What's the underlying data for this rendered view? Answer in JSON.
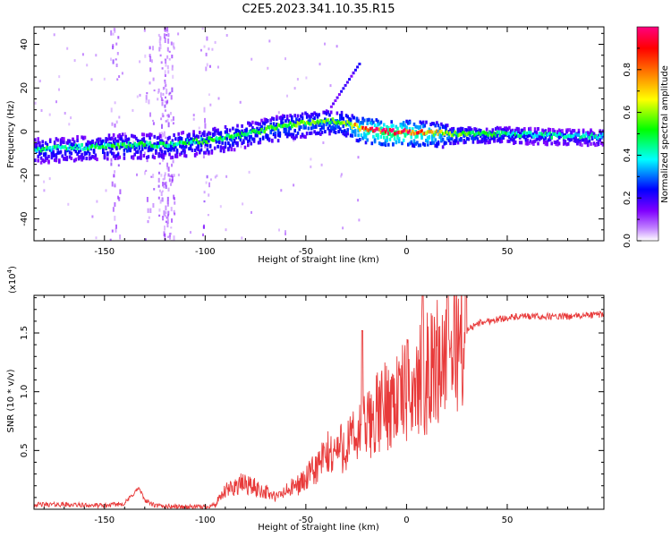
{
  "title": "C2E5.2023.341.10.35.R15",
  "chart_data": [
    {
      "type": "heatmap",
      "name": "spectrogram",
      "xlabel": "Height of straight line (km)",
      "ylabel": "Frequency (Hz)",
      "xlim": [
        -185,
        98
      ],
      "ylim": [
        -50,
        48
      ],
      "xticks": [
        -150,
        -100,
        -50,
        0,
        50
      ],
      "yticks": [
        -40,
        -20,
        0,
        20,
        40
      ],
      "colorbar": {
        "label": "Normalized spectral amplitude",
        "range": [
          0,
          1
        ],
        "ticks": [
          0.0,
          0.2,
          0.4,
          0.6,
          0.8
        ],
        "colors": [
          "#ffffff",
          "#8000ff",
          "#0000ff",
          "#00ffff",
          "#00ff00",
          "#ffff00",
          "#ff8000",
          "#ff0000",
          "#ff0080"
        ]
      },
      "ridge": {
        "x": [
          -185,
          -160,
          -140,
          -120,
          -100,
          -80,
          -60,
          -50,
          -40,
          -30,
          -25,
          -20,
          -10,
          0,
          20,
          50,
          80,
          98
        ],
        "y": [
          -8,
          -7,
          -6,
          -6,
          -4,
          -1,
          3,
          4,
          5,
          4,
          2,
          1,
          0,
          0,
          -1,
          -1,
          -2,
          -2
        ],
        "amplitude": [
          0.45,
          0.45,
          0.5,
          0.45,
          0.5,
          0.5,
          0.55,
          0.55,
          0.55,
          0.6,
          0.75,
          0.85,
          0.95,
          0.9,
          0.6,
          0.45,
          0.4,
          0.4
        ]
      }
    },
    {
      "type": "line",
      "name": "snr",
      "xlabel": "Height of straight line (km)",
      "ylabel": "SNR (10 * v/v)",
      "scale_label": "(x10",
      "scale_exp": "4",
      "xlim": [
        -185,
        98
      ],
      "ylim": [
        0,
        1.82
      ],
      "xticks": [
        -150,
        -100,
        -50,
        0,
        50
      ],
      "yticks": [
        0.5,
        1.0,
        1.5
      ],
      "ytick_labels": [
        "0.5",
        "1.0",
        "1.5"
      ],
      "color": "#e83a3a",
      "series": [
        {
          "name": "SNR",
          "x": [
            -185,
            -170,
            -150,
            -140,
            -133,
            -130,
            -125,
            -110,
            -100,
            -95,
            -90,
            -85,
            -80,
            -75,
            -70,
            -65,
            -60,
            -55,
            -50,
            -45,
            -40,
            -35,
            -30,
            -25,
            -20,
            -15,
            -10,
            -5,
            0,
            5,
            10,
            15,
            20,
            25,
            30,
            35,
            40,
            50,
            60,
            70,
            80,
            90,
            98
          ],
          "y": [
            0.04,
            0.04,
            0.03,
            0.05,
            0.18,
            0.08,
            0.03,
            0.02,
            0.02,
            0.04,
            0.15,
            0.2,
            0.22,
            0.18,
            0.15,
            0.1,
            0.15,
            0.2,
            0.25,
            0.35,
            0.45,
            0.5,
            0.55,
            0.6,
            0.7,
            0.8,
            0.9,
            0.95,
            1.0,
            1.05,
            1.15,
            1.25,
            1.35,
            1.45,
            1.52,
            1.58,
            1.6,
            1.63,
            1.64,
            1.64,
            1.64,
            1.65,
            1.66
          ]
        }
      ]
    }
  ]
}
